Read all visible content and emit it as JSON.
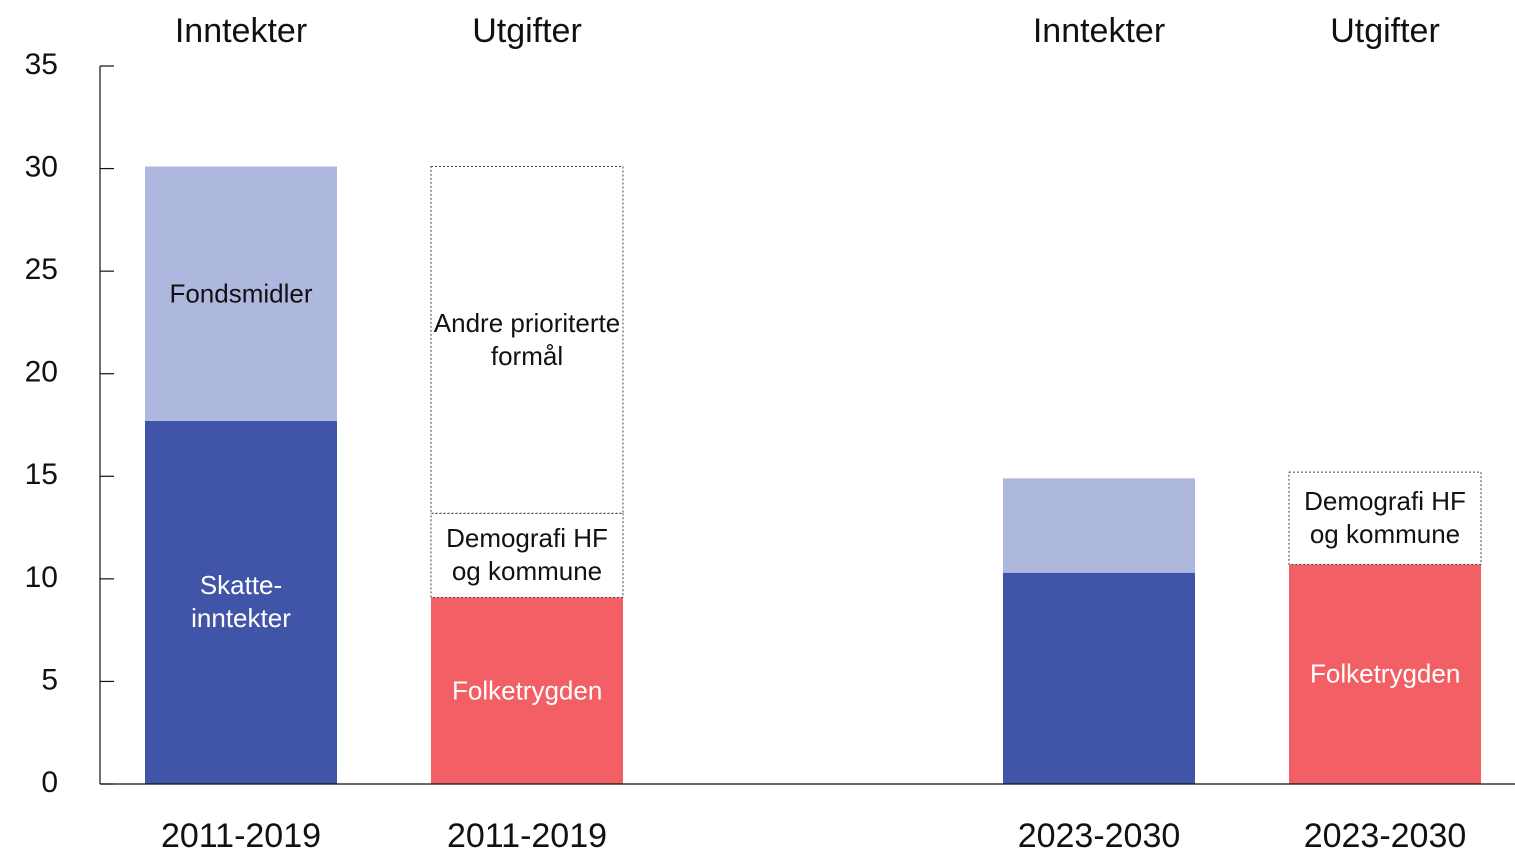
{
  "chart_data": {
    "type": "stacked_bar",
    "categories": [
      "2011-2019",
      "2011-2019",
      null,
      "2023-2030",
      "2023-2030"
    ],
    "column_titles": [
      "Inntekter",
      "Utgifter",
      null,
      "Inntekter",
      "Utgifter"
    ],
    "series": [
      {
        "name": "Skatte-inntekter",
        "color": "#4055a8",
        "text_color": "#ffffff",
        "values": [
          17.7,
          null,
          null,
          10.3,
          null
        ],
        "labeled": [
          true,
          false,
          false,
          false,
          false
        ]
      },
      {
        "name": "Fondsmidler",
        "color": "#aeb8df",
        "text_color": "#111111",
        "values": [
          12.4,
          null,
          null,
          4.6,
          null
        ],
        "labeled": [
          true,
          false,
          false,
          false,
          false
        ]
      },
      {
        "name": "Folketrygden",
        "color": "#f25f65",
        "text_color": "#ffffff",
        "values": [
          null,
          9.1,
          null,
          null,
          10.7
        ],
        "labeled": [
          false,
          true,
          false,
          false,
          true
        ]
      },
      {
        "name": "Demografi HF og kommune",
        "color": "#ffffff",
        "text_color": "#111111",
        "dashed": true,
        "values": [
          null,
          4.1,
          null,
          null,
          4.5
        ],
        "labeled": [
          false,
          true,
          false,
          false,
          true
        ]
      },
      {
        "name": "Andre prioriterte formål",
        "color": "#ffffff",
        "text_color": "#111111",
        "dashed": true,
        "values": [
          null,
          16.9,
          null,
          null,
          null
        ],
        "labeled": [
          false,
          true,
          false,
          false,
          false
        ]
      }
    ],
    "ylim": [
      0,
      35
    ],
    "yticks": [
      0,
      5,
      10,
      15,
      20,
      25,
      30,
      35
    ]
  }
}
